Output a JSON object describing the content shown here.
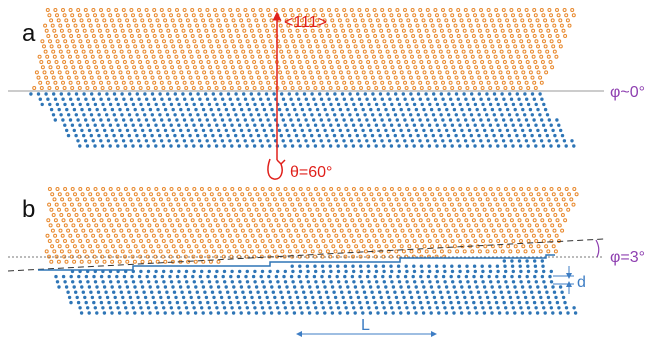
{
  "panels": {
    "a": {
      "letter": "a",
      "axis_label": "<111>",
      "rotation_label": "θ=60°",
      "tilt_label": "φ~0°"
    },
    "b": {
      "letter": "b",
      "tilt_label": "φ=3°",
      "step_height_label": "d",
      "terrace_length_label": "L"
    }
  },
  "colors": {
    "upper_atoms": "#E8892E",
    "lower_atoms": "#2E75B6",
    "axis_red": "#E0201B",
    "angle_purple": "#8E3FB0",
    "dimension_blue": "#3D7DC4",
    "boundary_gray": "#9a9a9a"
  }
}
